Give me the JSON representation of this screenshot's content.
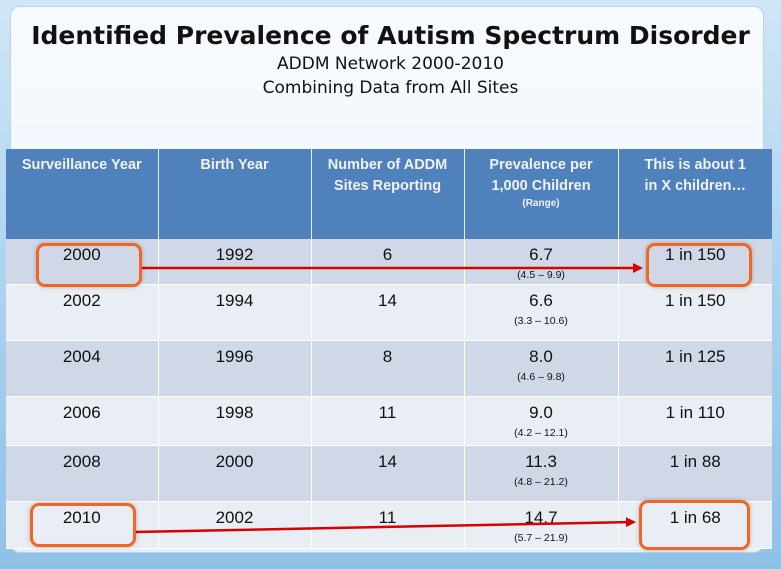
{
  "title": "Identified Prevalence of Autism Spectrum Disorder",
  "subtitle1": "ADDM Network 2000-2010",
  "subtitle2": "Combining Data from All Sites",
  "columns": {
    "year": "Surveillance Year",
    "birth": "Birth Year",
    "sites": "Number of ADDM Sites Reporting",
    "prev": "Prevalence per 1,000 Children",
    "prev_range": "(Range)",
    "ratio": "This is about 1 in X children…"
  },
  "rows": [
    {
      "year": "2000",
      "birth": "1992",
      "sites": "6",
      "prev": "6.7",
      "range": "(4.5 – 9.9)",
      "ratio": "1 in 150"
    },
    {
      "year": "2002",
      "birth": "1994",
      "sites": "14",
      "prev": "6.6",
      "range": "(3.3 – 10.6)",
      "ratio": "1 in 150"
    },
    {
      "year": "2004",
      "birth": "1996",
      "sites": "8",
      "prev": "8.0",
      "range": "(4.6 – 9.8)",
      "ratio": "1 in 125"
    },
    {
      "year": "2006",
      "birth": "1998",
      "sites": "11",
      "prev": "9.0",
      "range": "(4.2 – 12.1)",
      "ratio": "1 in 110"
    },
    {
      "year": "2008",
      "birth": "2000",
      "sites": "14",
      "prev": "11.3",
      "range": "(4.8 – 21.2)",
      "ratio": "1 in 88"
    },
    {
      "year": "2010",
      "birth": "2002",
      "sites": "11",
      "prev": "14.7",
      "range": "(5.7 – 21.9)",
      "ratio": "1 in 68"
    }
  ],
  "colors": {
    "header": "#4f81bd",
    "highlight": "#f26522",
    "arrow": "#d90000"
  }
}
